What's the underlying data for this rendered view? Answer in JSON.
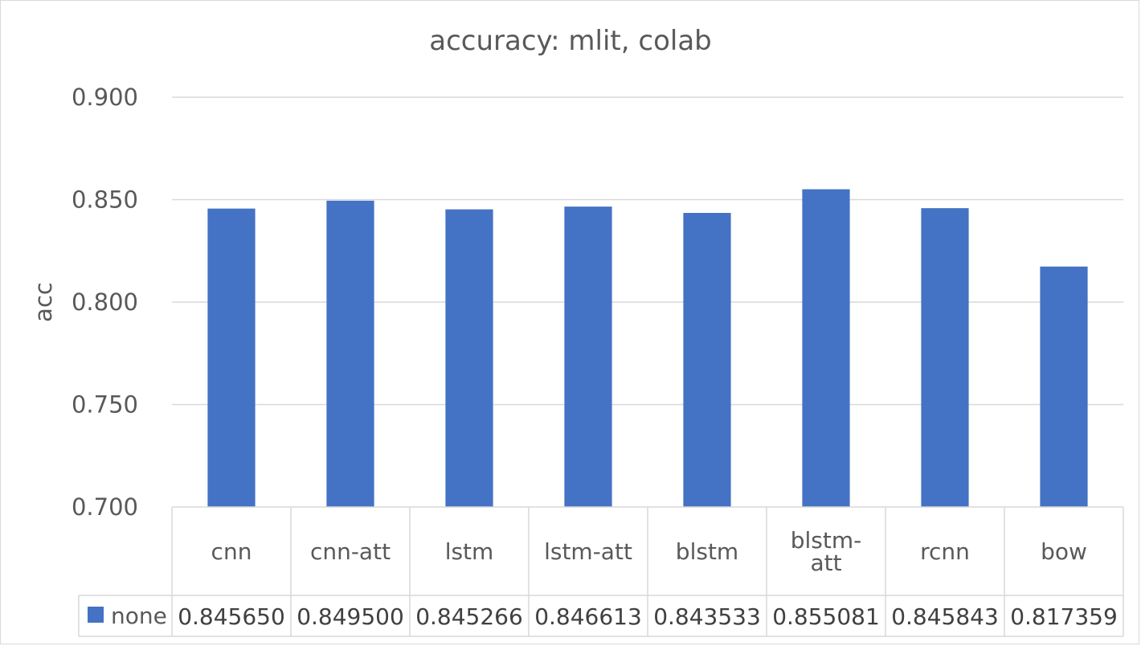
{
  "chart_data": {
    "type": "bar",
    "title": "accuracy: mlit, colab",
    "xlabel": "",
    "ylabel": "acc",
    "ylim": [
      0.7,
      0.9
    ],
    "yticks": [
      "0.700",
      "0.750",
      "0.800",
      "0.850",
      "0.900"
    ],
    "categories": [
      [
        "cnn"
      ],
      [
        "cnn-att"
      ],
      [
        "lstm"
      ],
      [
        "lstm-att"
      ],
      [
        "blstm"
      ],
      [
        "blstm-",
        "att"
      ],
      [
        "rcnn"
      ],
      [
        "bow"
      ]
    ],
    "series": [
      {
        "name": "none",
        "color": "#4472c4",
        "values": [
          0.84565,
          0.8495,
          0.845266,
          0.846613,
          0.843533,
          0.855081,
          0.845843,
          0.817359
        ],
        "labels": [
          "0.845650",
          "0.849500",
          "0.845266",
          "0.846613",
          "0.843533",
          "0.855081",
          "0.845843",
          "0.817359"
        ]
      }
    ],
    "grid": true,
    "legend": "data-table"
  }
}
